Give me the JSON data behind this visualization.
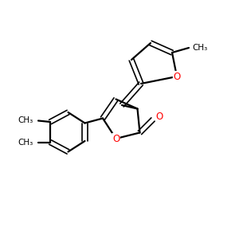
{
  "bg_color": "#ffffff",
  "bond_color": "#000000",
  "atom_color": "#ff0000",
  "figsize": [
    3.0,
    3.0
  ],
  "dpi": 100,
  "xlim": [
    0,
    10
  ],
  "ylim": [
    0,
    10
  ]
}
